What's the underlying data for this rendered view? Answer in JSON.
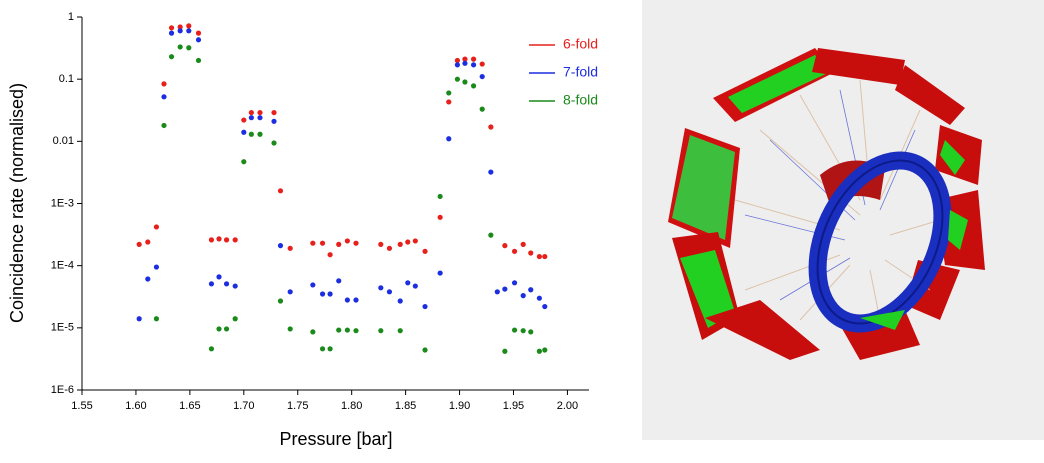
{
  "chart_data": {
    "type": "scatter",
    "xlabel": "Pressure [bar]",
    "ylabel": "Coincidence rate (normalised)",
    "yscale": "log",
    "legend": "top-right",
    "x": [
      1.603,
      1.611,
      1.619,
      1.626,
      1.633,
      1.641,
      1.649,
      1.658,
      1.67,
      1.677,
      1.684,
      1.692,
      1.7,
      1.707,
      1.715,
      1.728,
      1.734,
      1.743,
      1.764,
      1.773,
      1.78,
      1.788,
      1.796,
      1.804,
      1.827,
      1.835,
      1.845,
      1.852,
      1.859,
      1.868,
      1.882,
      1.89,
      1.898,
      1.905,
      1.913,
      1.921,
      1.929,
      1.935,
      1.942,
      1.951,
      1.959,
      1.966,
      1.974,
      1.979
    ],
    "series": [
      {
        "name": "6-fold",
        "color": "#e8201c",
        "values": [
          0.00022,
          0.00024,
          0.00042,
          0.084,
          0.67,
          0.69,
          0.72,
          0.55,
          0.00026,
          0.00027,
          0.00026,
          0.00026,
          0.022,
          0.029,
          0.029,
          0.029,
          0.0016,
          0.00019,
          0.00023,
          0.00023,
          0.00015,
          0.00022,
          0.00025,
          0.00023,
          0.00022,
          0.00019,
          0.00022,
          0.00024,
          0.00025,
          0.00017,
          0.0006,
          0.043,
          0.2,
          0.21,
          0.21,
          0.175,
          0.017,
          null,
          0.00021,
          0.00017,
          0.00022,
          0.00016,
          0.00014,
          0.00014
        ]
      },
      {
        "name": "7-fold",
        "color": "#1c2fe0",
        "values": [
          1.4e-05,
          6.1e-05,
          9.5e-05,
          0.052,
          0.55,
          0.6,
          0.6,
          0.43,
          5.1e-05,
          6.6e-05,
          5.1e-05,
          4.7e-05,
          0.014,
          0.024,
          0.024,
          0.021,
          0.00021,
          3.8e-05,
          4.9e-05,
          3.5e-05,
          3.5e-05,
          5.7e-05,
          2.8e-05,
          2.8e-05,
          4.4e-05,
          3.8e-05,
          2.7e-05,
          5.3e-05,
          4.7e-05,
          2.2e-05,
          7.6e-05,
          0.011,
          0.17,
          0.18,
          0.17,
          0.11,
          0.0032,
          3.8e-05,
          4.2e-05,
          5.3e-05,
          3.3e-05,
          4.1e-05,
          3e-05,
          2.2e-05
        ]
      },
      {
        "name": "8-fold",
        "color": "#1a8a1a",
        "values": [
          null,
          null,
          1.4e-05,
          0.018,
          0.23,
          0.33,
          0.32,
          0.2,
          4.6e-06,
          9.6e-06,
          9.6e-06,
          1.4e-05,
          0.0047,
          0.013,
          0.013,
          0.0094,
          2.7e-05,
          9.6e-06,
          8.6e-06,
          4.6e-06,
          4.6e-06,
          9.2e-06,
          9.2e-06,
          9e-06,
          9e-06,
          null,
          9e-06,
          null,
          null,
          4.4e-06,
          0.0013,
          0.06,
          0.1,
          0.09,
          0.078,
          0.033,
          0.00031,
          null,
          4.2e-06,
          9.2e-06,
          9e-06,
          8.6e-06,
          4.2e-06,
          4.4e-06
        ]
      }
    ],
    "xlim": [
      1.55,
      2.02
    ],
    "xticks": [
      1.55,
      {
        "value": 1.6,
        "label": "1.60"
      },
      1.65,
      {
        "value": 1.7,
        "label": "1.70"
      },
      1.75,
      {
        "value": 1.8,
        "label": "1.80"
      },
      1.85,
      {
        "value": 1.9,
        "label": "1.90"
      },
      1.95,
      {
        "value": 2,
        "label": "2.00"
      }
    ],
    "ylim": [
      1e-06,
      1
    ],
    "yticks": [
      1,
      0.1,
      0.01,
      {
        "value": 0.001,
        "label": "1E-3"
      },
      {
        "value": 0.0001,
        "label": "1E-4"
      },
      {
        "value": 1e-05,
        "label": "1E-5"
      },
      {
        "value": 1e-06,
        "label": "1E-6"
      }
    ]
  }
}
